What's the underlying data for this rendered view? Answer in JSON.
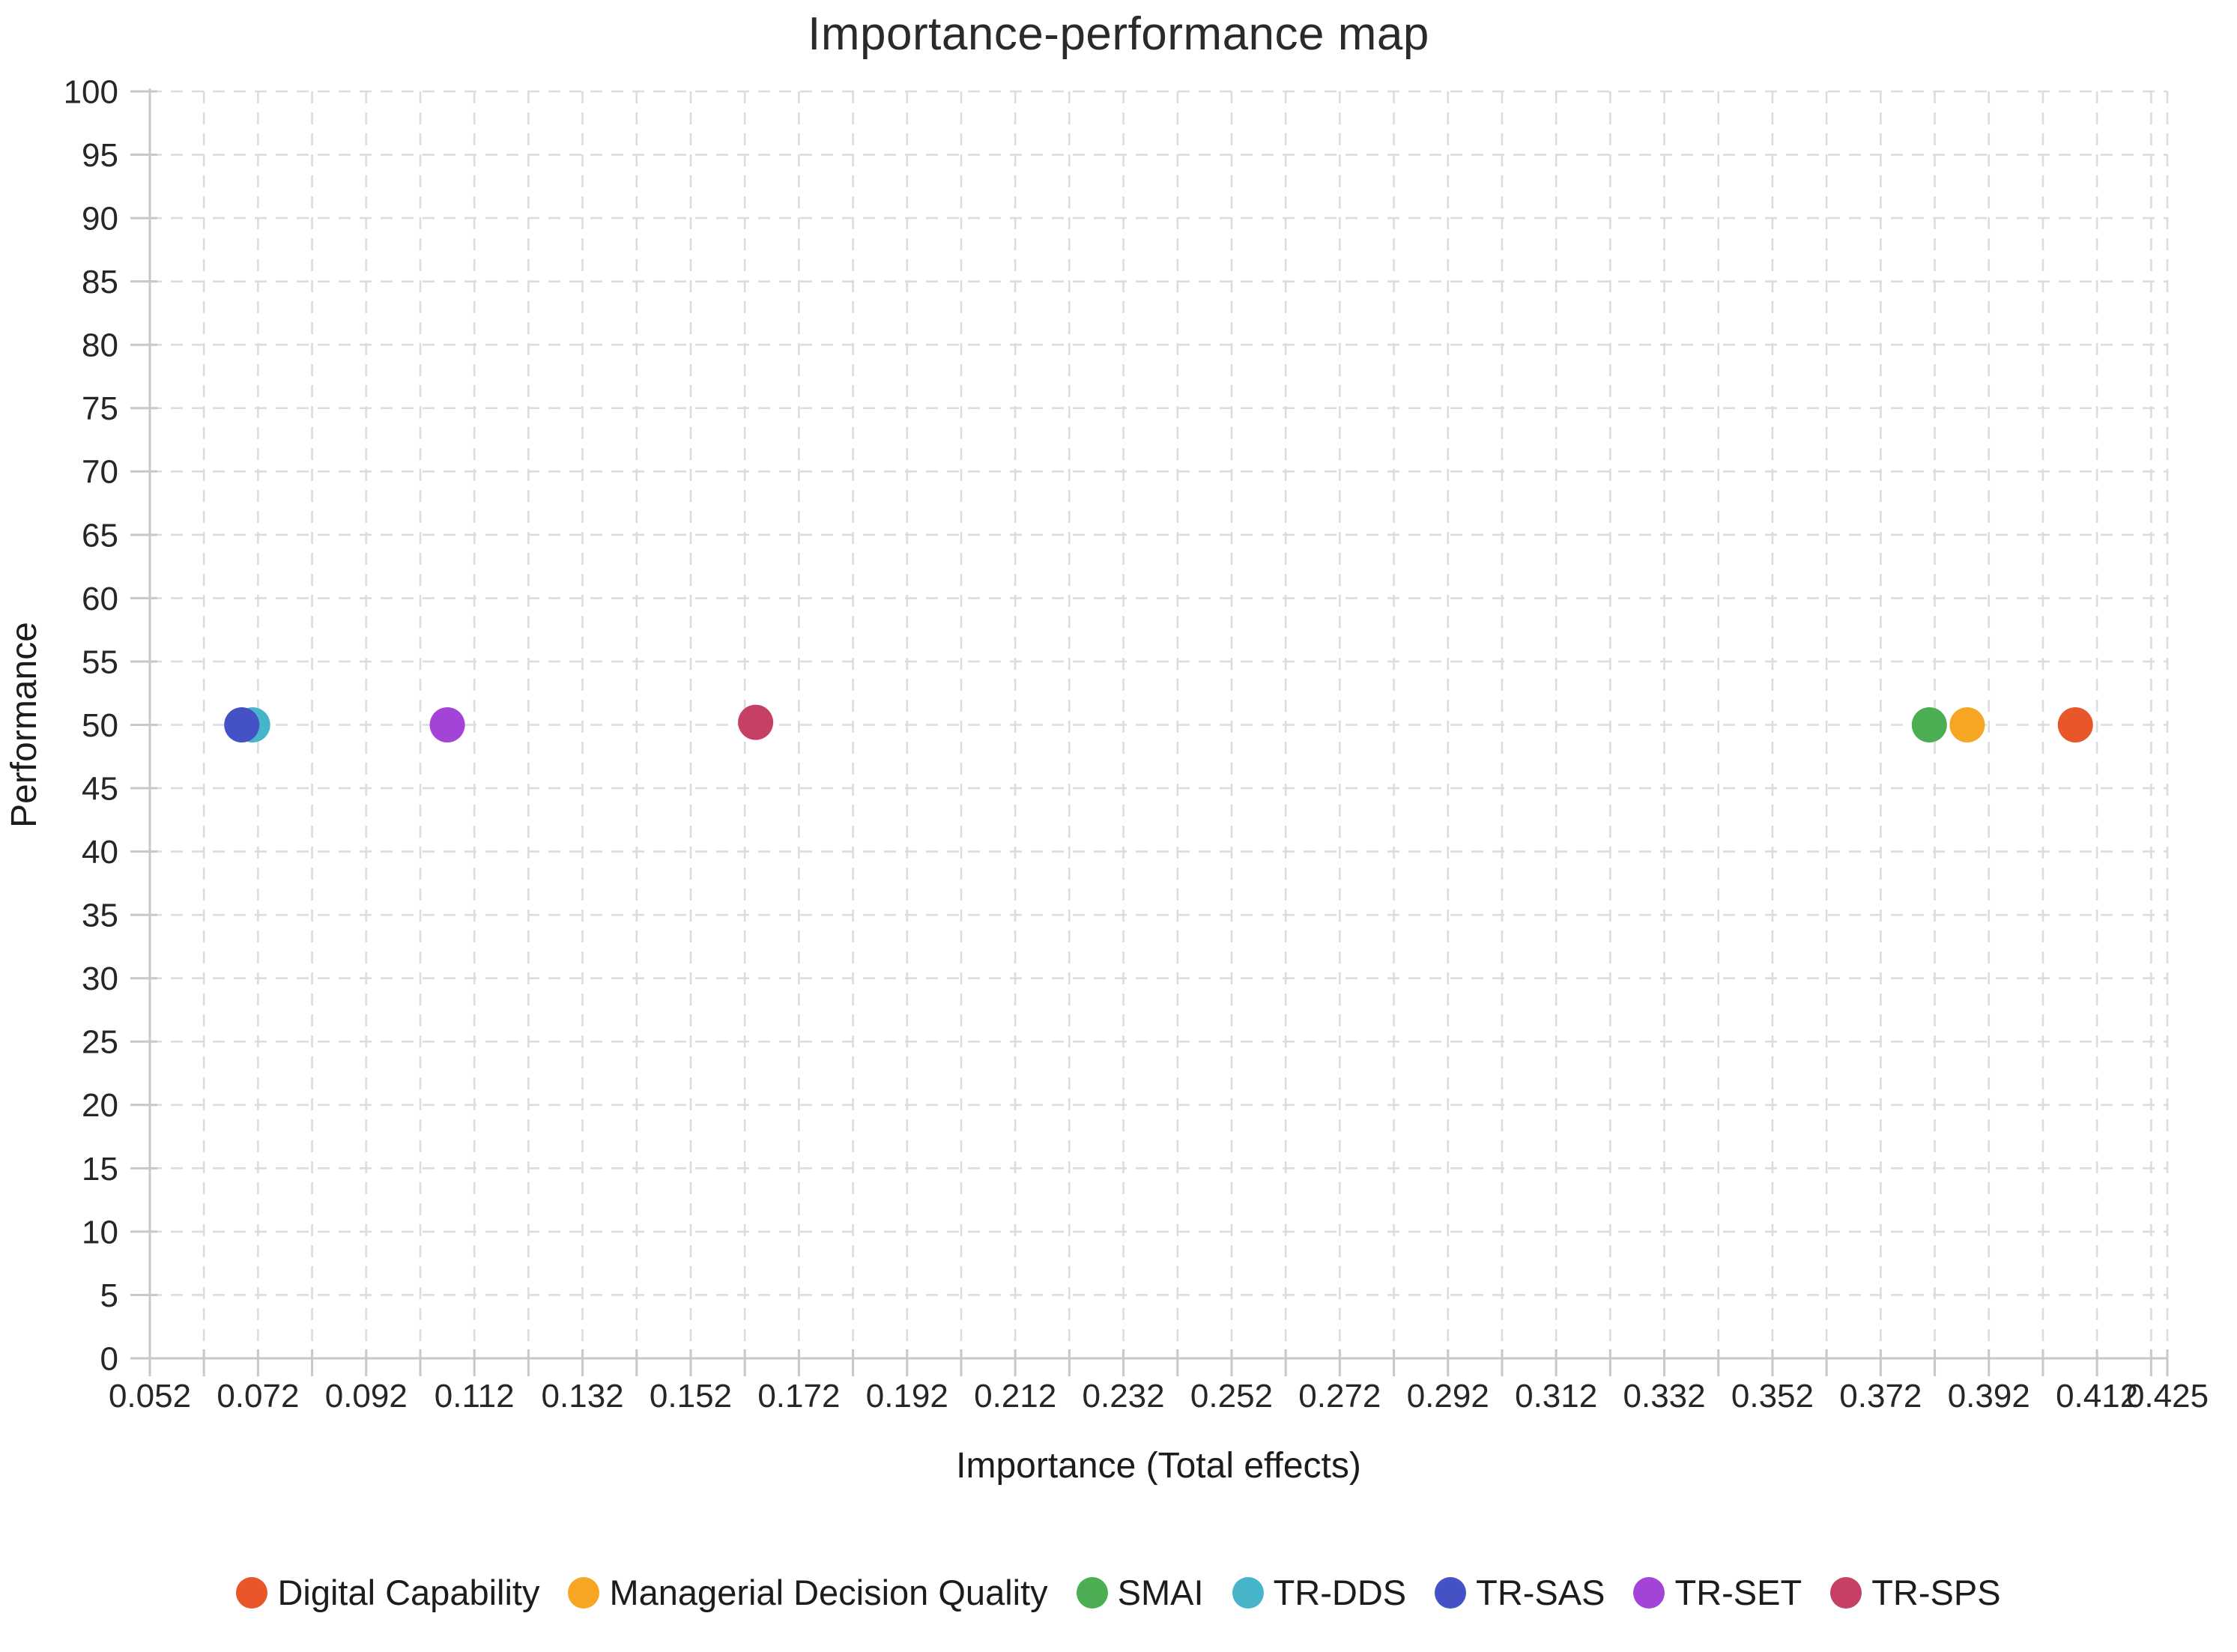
{
  "chart_data": {
    "type": "scatter",
    "title": "Importance-performance map",
    "xlabel": "Importance (Total effects)",
    "ylabel": "Performance",
    "xlim": [
      0.052,
      0.425
    ],
    "ylim": [
      0,
      100
    ],
    "x_tick_labels": [
      "0.052",
      "0.072",
      "0.092",
      "0.112",
      "0.132",
      "0.152",
      "0.172",
      "0.192",
      "0.212",
      "0.232",
      "0.252",
      "0.272",
      "0.292",
      "0.312",
      "0.332",
      "0.352",
      "0.372",
      "0.392",
      "0.412",
      "0.425"
    ],
    "x_minor_grid_step": 0.01,
    "y_tick_step": 5,
    "grid": "dashed",
    "legend_position": "bottom",
    "series": [
      {
        "name": "Digital Capability",
        "color": "#e8562a",
        "points": [
          {
            "x": 0.408,
            "y": 50
          }
        ]
      },
      {
        "name": "Managerial Decision Quality",
        "color": "#f7a623",
        "points": [
          {
            "x": 0.388,
            "y": 50
          }
        ]
      },
      {
        "name": "SMAI",
        "color": "#4cae52",
        "points": [
          {
            "x": 0.381,
            "y": 50
          }
        ]
      },
      {
        "name": "TR-DDS",
        "color": "#46b5c9",
        "points": [
          {
            "x": 0.071,
            "y": 50
          }
        ]
      },
      {
        "name": "TR-SAS",
        "color": "#4452c5",
        "points": [
          {
            "x": 0.069,
            "y": 50
          }
        ]
      },
      {
        "name": "TR-SET",
        "color": "#a443d8",
        "points": [
          {
            "x": 0.107,
            "y": 50
          }
        ]
      },
      {
        "name": "TR-SPS",
        "color": "#c54064",
        "points": [
          {
            "x": 0.164,
            "y": 50.2
          }
        ]
      }
    ],
    "colors": {
      "grid": "#dcdcdf",
      "axis": "#c8c8cb",
      "tick_label": "#262626",
      "axis_label": "#1c1c1c"
    }
  }
}
